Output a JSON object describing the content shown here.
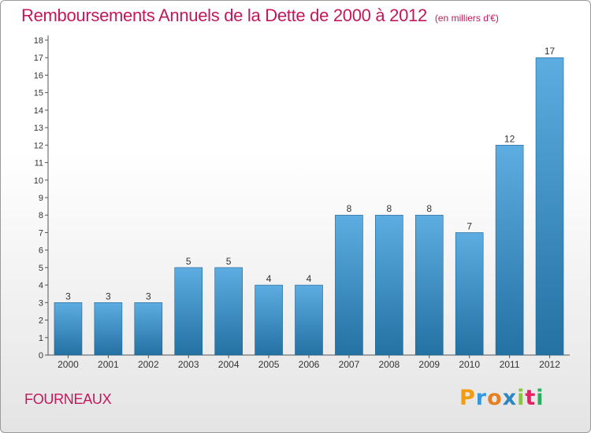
{
  "header": {
    "title": "Remboursements Annuels de la Dette de 2000 à 2012",
    "unit": "(en milliers d'€)"
  },
  "footer": {
    "commune": "FOURNEAUX",
    "logo": {
      "letters": [
        "P",
        "r",
        "o",
        "x",
        "i",
        "t",
        "i"
      ],
      "colors": [
        "#f39c12",
        "#3498db",
        "#e67e22",
        "#2e86c1",
        "#8bc34a",
        "#e91e63",
        "#27ae60"
      ]
    }
  },
  "colors": {
    "accent": "#c2185b",
    "bar_light": "#5dade2",
    "bar_dark": "#2471a3"
  },
  "chart_data": {
    "type": "bar",
    "title": "Remboursements Annuels de la Dette de 2000 à 2012",
    "categories": [
      "2000",
      "2001",
      "2002",
      "2003",
      "2004",
      "2005",
      "2006",
      "2007",
      "2008",
      "2009",
      "2010",
      "2011",
      "2012"
    ],
    "values": [
      3,
      3,
      3,
      5,
      5,
      4,
      4,
      8,
      8,
      8,
      7,
      12,
      17
    ],
    "yticks": [
      0,
      1,
      2,
      3,
      4,
      5,
      6,
      7,
      8,
      9,
      10,
      11,
      12,
      13,
      14,
      15,
      16,
      17,
      18
    ],
    "ylim": [
      0,
      18
    ],
    "xlabel": "",
    "ylabel": "",
    "grid": false,
    "legend": "none"
  }
}
